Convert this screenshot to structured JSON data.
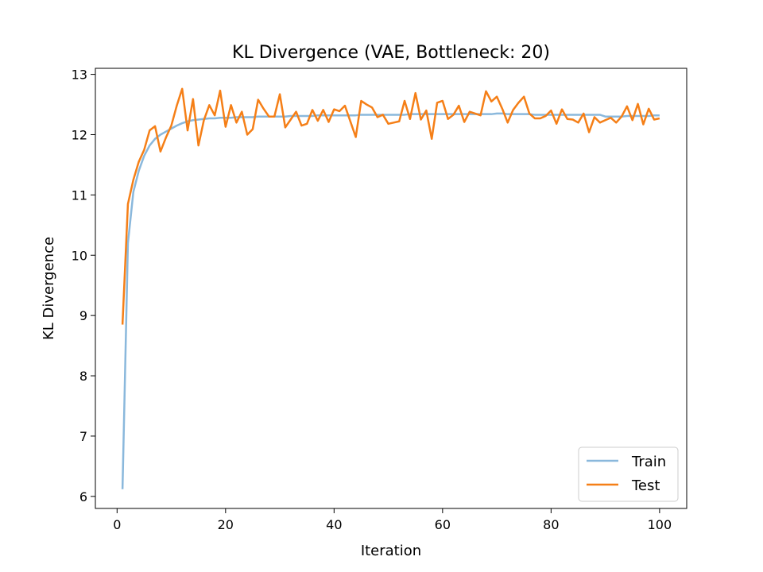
{
  "chart_data": {
    "type": "line",
    "title": "KL Divergence (VAE, Bottleneck: 20)",
    "xlabel": "Iteration",
    "ylabel": "KL Divergence",
    "xlim": [
      -4,
      105
    ],
    "ylim": [
      5.8,
      13.1
    ],
    "xticks": [
      0,
      20,
      40,
      60,
      80,
      100
    ],
    "yticks": [
      6,
      7,
      8,
      9,
      10,
      11,
      12,
      13
    ],
    "grid": false,
    "legend_position": "lower-right",
    "x": [
      1,
      2,
      3,
      4,
      5,
      6,
      7,
      8,
      9,
      10,
      11,
      12,
      13,
      14,
      15,
      16,
      17,
      18,
      19,
      20,
      21,
      22,
      23,
      24,
      25,
      26,
      27,
      28,
      29,
      30,
      31,
      32,
      33,
      34,
      35,
      36,
      37,
      38,
      39,
      40,
      41,
      42,
      43,
      44,
      45,
      46,
      47,
      48,
      49,
      50,
      51,
      52,
      53,
      54,
      55,
      56,
      57,
      58,
      59,
      60,
      61,
      62,
      63,
      64,
      65,
      66,
      67,
      68,
      69,
      70,
      71,
      72,
      73,
      74,
      75,
      76,
      77,
      78,
      79,
      80,
      81,
      82,
      83,
      84,
      85,
      86,
      87,
      88,
      89,
      90,
      91,
      92,
      93,
      94,
      95,
      96,
      97,
      98,
      99,
      100
    ],
    "series": [
      {
        "name": "Train",
        "color": "#8ab8dc",
        "values": [
          6.12,
          10.2,
          11.05,
          11.4,
          11.65,
          11.82,
          11.93,
          12.0,
          12.05,
          12.1,
          12.15,
          12.19,
          12.22,
          12.24,
          12.25,
          12.26,
          12.27,
          12.27,
          12.28,
          12.28,
          12.28,
          12.29,
          12.29,
          12.29,
          12.29,
          12.3,
          12.3,
          12.3,
          12.3,
          12.3,
          12.3,
          12.31,
          12.31,
          12.31,
          12.31,
          12.31,
          12.32,
          12.32,
          12.32,
          12.32,
          12.32,
          12.32,
          12.32,
          12.32,
          12.33,
          12.33,
          12.33,
          12.33,
          12.33,
          12.33,
          12.33,
          12.33,
          12.33,
          12.34,
          12.34,
          12.34,
          12.34,
          12.34,
          12.34,
          12.34,
          12.34,
          12.34,
          12.34,
          12.34,
          12.34,
          12.34,
          12.34,
          12.34,
          12.34,
          12.35,
          12.35,
          12.34,
          12.34,
          12.34,
          12.34,
          12.34,
          12.33,
          12.33,
          12.33,
          12.33,
          12.33,
          12.33,
          12.33,
          12.33,
          12.33,
          12.33,
          12.33,
          12.33,
          12.33,
          12.3,
          12.3,
          12.3,
          12.3,
          12.31,
          12.31,
          12.31,
          12.31,
          12.31,
          12.32,
          12.32
        ]
      },
      {
        "name": "Test",
        "color": "#f57f17",
        "values": [
          8.85,
          10.85,
          11.25,
          11.55,
          11.75,
          12.07,
          12.14,
          11.72,
          11.95,
          12.15,
          12.48,
          12.76,
          12.07,
          12.59,
          11.82,
          12.24,
          12.49,
          12.32,
          12.73,
          12.13,
          12.49,
          12.2,
          12.38,
          12.0,
          12.09,
          12.58,
          12.43,
          12.3,
          12.3,
          12.67,
          12.12,
          12.25,
          12.38,
          12.15,
          12.18,
          12.41,
          12.23,
          12.41,
          12.21,
          12.42,
          12.39,
          12.48,
          12.22,
          11.96,
          12.56,
          12.5,
          12.45,
          12.29,
          12.33,
          12.18,
          12.2,
          12.22,
          12.56,
          12.26,
          12.69,
          12.25,
          12.4,
          11.93,
          12.53,
          12.56,
          12.26,
          12.33,
          12.48,
          12.21,
          12.38,
          12.35,
          12.32,
          12.72,
          12.55,
          12.63,
          12.43,
          12.2,
          12.41,
          12.53,
          12.63,
          12.35,
          12.27,
          12.27,
          12.31,
          12.4,
          12.18,
          12.42,
          12.26,
          12.25,
          12.2,
          12.35,
          12.04,
          12.29,
          12.2,
          12.24,
          12.28,
          12.2,
          12.3,
          12.47,
          12.24,
          12.51,
          12.17,
          12.43,
          12.25,
          12.27
        ]
      }
    ]
  }
}
